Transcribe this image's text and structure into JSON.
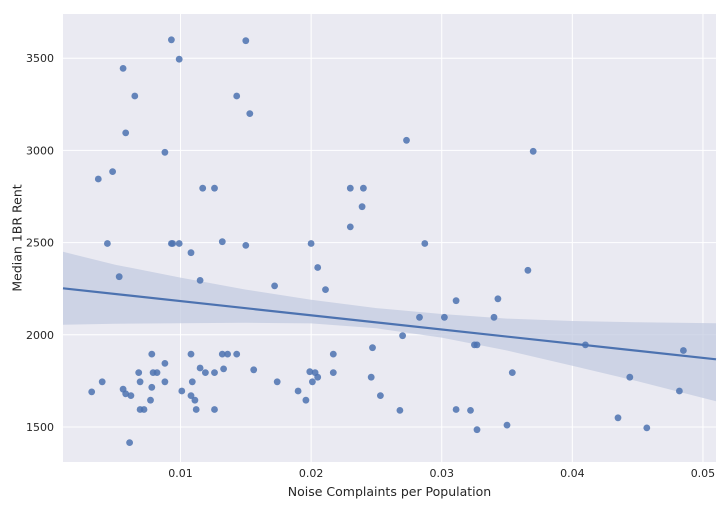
{
  "chart_data": {
    "type": "scatter",
    "title": "",
    "xlabel": "Noise Complaints per Population",
    "ylabel": "Median 1BR Rent",
    "xlim": [
      0.001,
      0.051
    ],
    "ylim": [
      1310,
      3740
    ],
    "x_ticks": [
      0.01,
      0.02,
      0.03,
      0.04,
      0.05
    ],
    "x_tick_labels": [
      "0.01",
      "0.02",
      "0.03",
      "0.04",
      "0.05"
    ],
    "y_ticks": [
      1500,
      2000,
      2500,
      3000,
      3500
    ],
    "y_tick_labels": [
      "1500",
      "2000",
      "2500",
      "3000",
      "3500"
    ],
    "grid": true,
    "background": "#eaeaf2",
    "point_color": "#4c72b0",
    "line_color": "#4c72b0",
    "band_color": "#c3cbe0",
    "points": [
      [
        0.0093,
        3600
      ],
      [
        0.015,
        3595
      ],
      [
        0.0099,
        3495
      ],
      [
        0.0056,
        3445
      ],
      [
        0.0065,
        3295
      ],
      [
        0.0143,
        3295
      ],
      [
        0.0153,
        3200
      ],
      [
        0.0058,
        3095
      ],
      [
        0.0273,
        3055
      ],
      [
        0.0088,
        2990
      ],
      [
        0.037,
        2995
      ],
      [
        0.0037,
        2845
      ],
      [
        0.0048,
        2885
      ],
      [
        0.0117,
        2795
      ],
      [
        0.0126,
        2795
      ],
      [
        0.023,
        2795
      ],
      [
        0.024,
        2795
      ],
      [
        0.0239,
        2695
      ],
      [
        0.023,
        2585
      ],
      [
        0.0044,
        2495
      ],
      [
        0.0093,
        2495
      ],
      [
        0.0094,
        2495
      ],
      [
        0.0099,
        2495
      ],
      [
        0.0132,
        2505
      ],
      [
        0.015,
        2485
      ],
      [
        0.02,
        2495
      ],
      [
        0.0287,
        2495
      ],
      [
        0.0108,
        2445
      ],
      [
        0.0205,
        2365
      ],
      [
        0.0366,
        2350
      ],
      [
        0.0053,
        2315
      ],
      [
        0.0115,
        2295
      ],
      [
        0.0172,
        2265
      ],
      [
        0.0211,
        2245
      ],
      [
        0.0343,
        2195
      ],
      [
        0.0311,
        2185
      ],
      [
        0.0283,
        2095
      ],
      [
        0.0302,
        2095
      ],
      [
        0.034,
        2095
      ],
      [
        0.027,
        1995
      ],
      [
        0.0325,
        1945
      ],
      [
        0.0327,
        1945
      ],
      [
        0.041,
        1945
      ],
      [
        0.0485,
        1915
      ],
      [
        0.0247,
        1930
      ],
      [
        0.0078,
        1895
      ],
      [
        0.0108,
        1895
      ],
      [
        0.0132,
        1895
      ],
      [
        0.0136,
        1895
      ],
      [
        0.0143,
        1895
      ],
      [
        0.0217,
        1895
      ],
      [
        0.0088,
        1845
      ],
      [
        0.0115,
        1820
      ],
      [
        0.0133,
        1815
      ],
      [
        0.0156,
        1810
      ],
      [
        0.0068,
        1795
      ],
      [
        0.0079,
        1795
      ],
      [
        0.0082,
        1795
      ],
      [
        0.0119,
        1795
      ],
      [
        0.0126,
        1795
      ],
      [
        0.0199,
        1800
      ],
      [
        0.0203,
        1795
      ],
      [
        0.0217,
        1795
      ],
      [
        0.0354,
        1795
      ],
      [
        0.0205,
        1770
      ],
      [
        0.0246,
        1770
      ],
      [
        0.0444,
        1770
      ],
      [
        0.004,
        1745
      ],
      [
        0.0069,
        1745
      ],
      [
        0.0088,
        1745
      ],
      [
        0.0109,
        1745
      ],
      [
        0.0174,
        1745
      ],
      [
        0.0201,
        1745
      ],
      [
        0.0078,
        1715
      ],
      [
        0.0101,
        1695
      ],
      [
        0.0032,
        1690
      ],
      [
        0.0056,
        1705
      ],
      [
        0.0058,
        1680
      ],
      [
        0.0062,
        1670
      ],
      [
        0.0108,
        1670
      ],
      [
        0.019,
        1695
      ],
      [
        0.0482,
        1695
      ],
      [
        0.0253,
        1670
      ],
      [
        0.0077,
        1645
      ],
      [
        0.0111,
        1645
      ],
      [
        0.0196,
        1645
      ],
      [
        0.0069,
        1595
      ],
      [
        0.0072,
        1595
      ],
      [
        0.0112,
        1595
      ],
      [
        0.0126,
        1595
      ],
      [
        0.0268,
        1590
      ],
      [
        0.0311,
        1595
      ],
      [
        0.0322,
        1590
      ],
      [
        0.0435,
        1550
      ],
      [
        0.035,
        1510
      ],
      [
        0.0457,
        1495
      ],
      [
        0.0327,
        1485
      ],
      [
        0.0061,
        1415
      ]
    ],
    "regression": {
      "x": [
        0.001,
        0.051
      ],
      "y": [
        2252,
        1867
      ]
    },
    "confidence_band": {
      "x": [
        0.001,
        0.005,
        0.01,
        0.015,
        0.02,
        0.025,
        0.03,
        0.035,
        0.04,
        0.045,
        0.051
      ],
      "upper": [
        2450,
        2380,
        2310,
        2245,
        2190,
        2145,
        2113,
        2088,
        2075,
        2068,
        2063
      ],
      "lower": [
        2055,
        2060,
        2063,
        2065,
        2062,
        2035,
        1985,
        1915,
        1832,
        1748,
        1640
      ]
    }
  }
}
